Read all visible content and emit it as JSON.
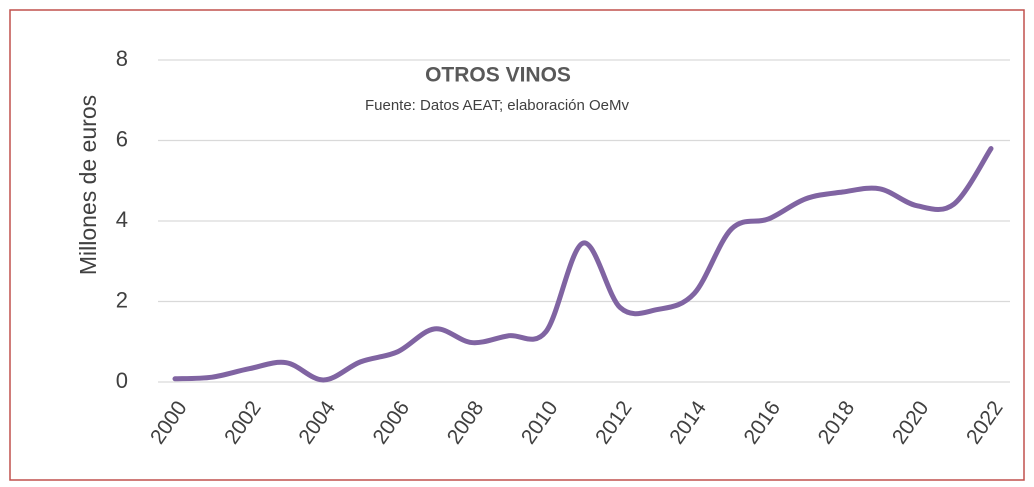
{
  "chart_data": {
    "type": "line",
    "title": "OTROS VINOS",
    "subtitle": "Fuente: Datos AEAT; elaboración OeMv",
    "y_label": "Millones de euros",
    "x": [
      2000,
      2001,
      2002,
      2003,
      2004,
      2005,
      2006,
      2007,
      2008,
      2009,
      2010,
      2011,
      2012,
      2013,
      2014,
      2015,
      2016,
      2017,
      2018,
      2019,
      2020,
      2021,
      2022
    ],
    "series": [
      {
        "name": "Otros vinos",
        "color": "#8064a2",
        "values": [
          0.08,
          0.12,
          0.33,
          0.48,
          0.05,
          0.5,
          0.75,
          1.32,
          0.98,
          1.15,
          1.25,
          3.45,
          1.85,
          1.8,
          2.2,
          3.8,
          4.05,
          4.55,
          4.72,
          4.8,
          4.38,
          4.42,
          5.8
        ]
      }
    ],
    "xlim": [
      2000,
      2022
    ],
    "xticks": [
      2000,
      2002,
      2004,
      2006,
      2008,
      2010,
      2012,
      2014,
      2016,
      2018,
      2020,
      2022
    ],
    "ylim": [
      0,
      8
    ],
    "yticks": [
      0,
      2,
      4,
      6,
      8
    ],
    "grid": true
  }
}
